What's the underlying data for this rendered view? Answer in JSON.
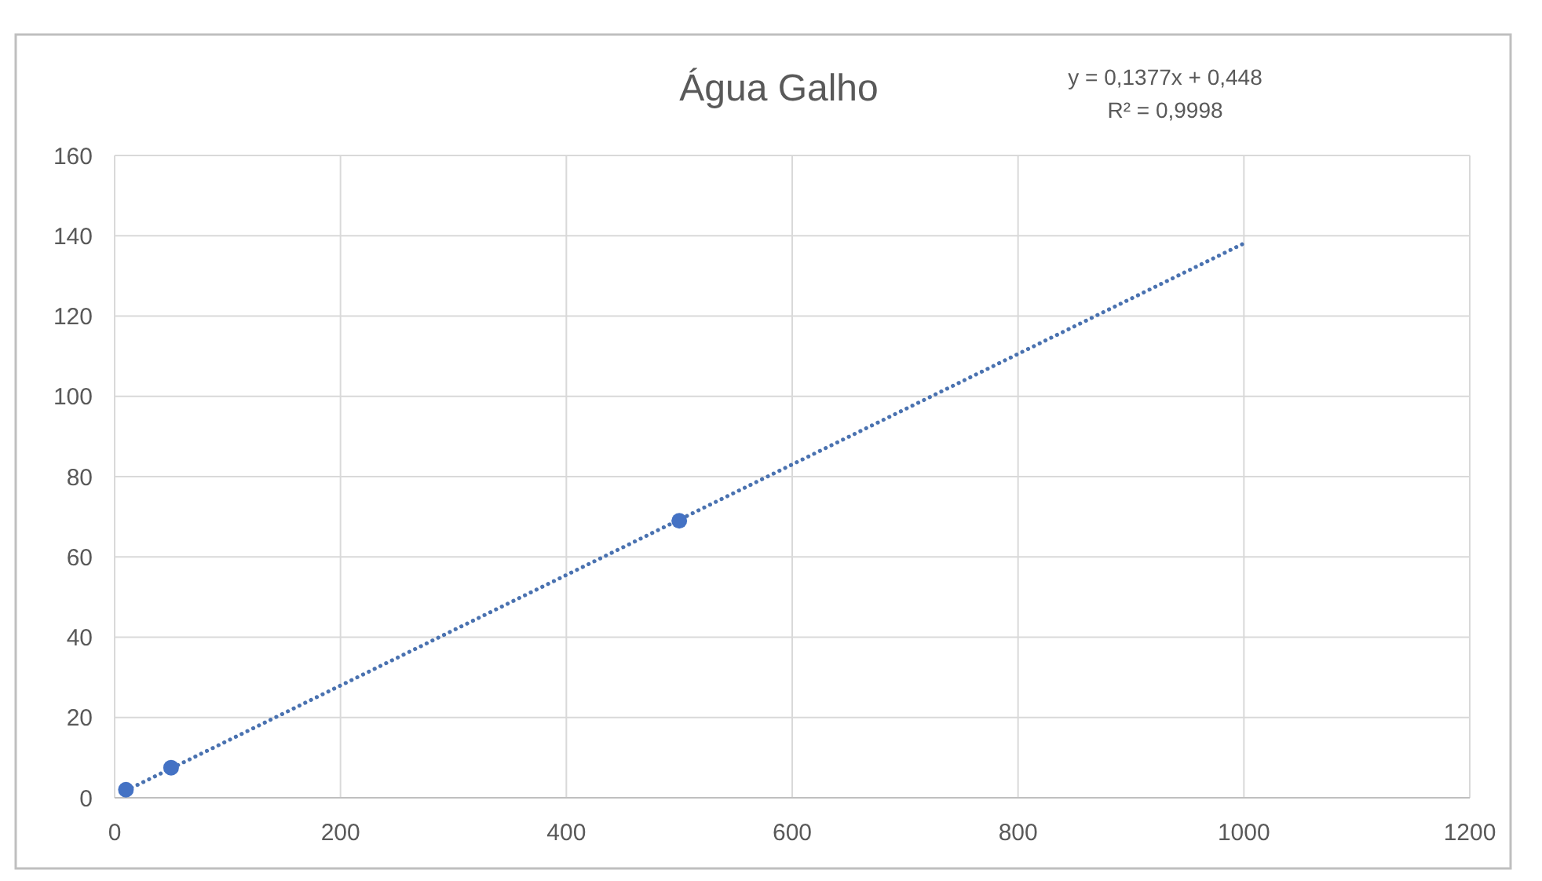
{
  "chart_data": {
    "type": "scatter",
    "title": "Água Galho",
    "annotations": [
      "y = 0,1377x + 0,448",
      "R² = 0,9998"
    ],
    "xlim": [
      0,
      1200
    ],
    "xticks": [
      0,
      200,
      400,
      600,
      800,
      1000,
      1200
    ],
    "ylim": [
      0,
      160
    ],
    "yticks": [
      0,
      20,
      40,
      60,
      80,
      100,
      120,
      140,
      160
    ],
    "grid": true,
    "series": [
      {
        "color": "#4472c4",
        "marker": "circle",
        "x": [
          10,
          50,
          500
        ],
        "values": [
          2,
          7.5,
          69
        ]
      },
      {
        "type": "line",
        "color": "#4a72b0",
        "line_style": "dotted",
        "marker": "none",
        "x": [
          10,
          1000
        ],
        "values": [
          1.8,
          138.1
        ]
      }
    ]
  }
}
